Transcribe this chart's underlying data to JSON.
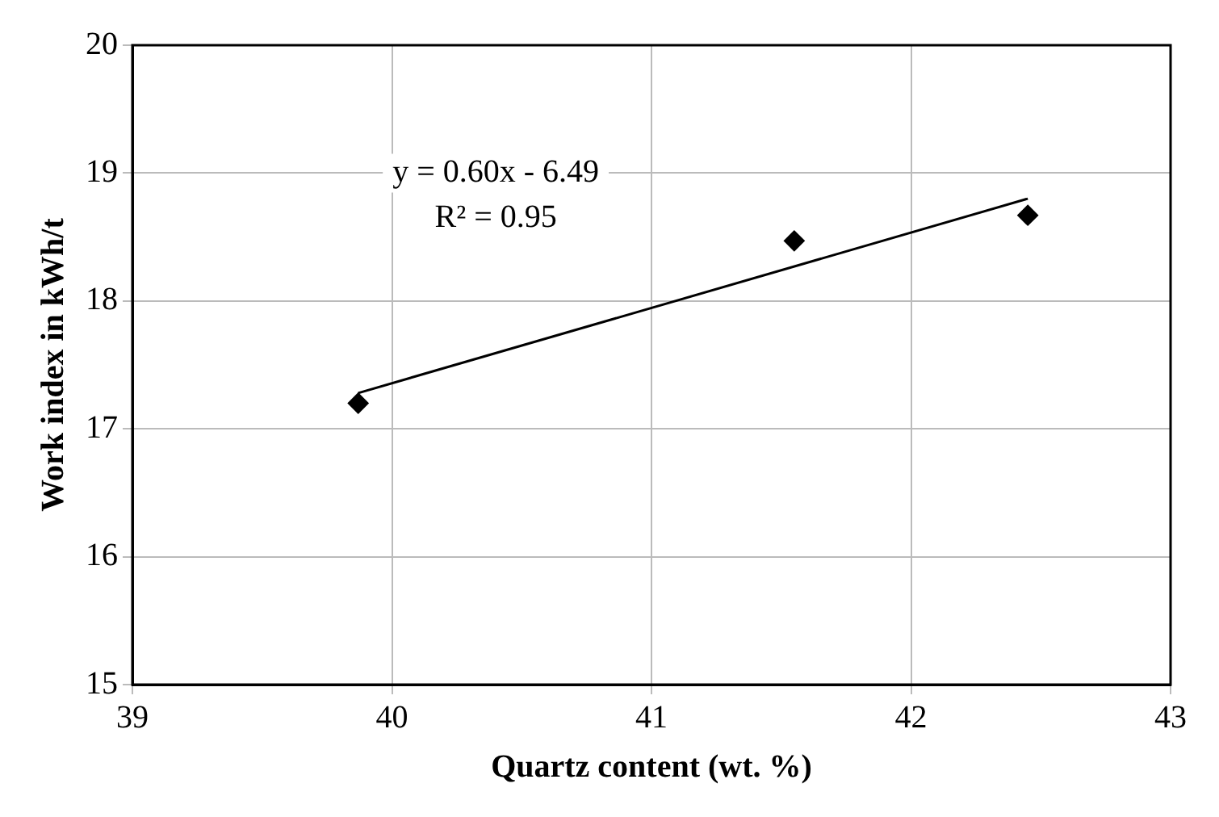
{
  "chart_data": {
    "type": "scatter",
    "xlabel": "Quartz content (wt. %)",
    "ylabel": "Work index in kWh/t",
    "series": [
      {
        "type": "scatter",
        "color": "#000000",
        "marker": "diamond",
        "x": [
          39.87,
          41.55,
          42.45
        ],
        "values": [
          17.2,
          18.47,
          18.67
        ]
      },
      {
        "type": "line",
        "color": "#000000",
        "marker": "none",
        "line_style": "solid",
        "x": [
          39.87,
          42.45
        ],
        "values": [
          17.28,
          18.8
        ]
      }
    ],
    "xlim": [
      39,
      43
    ],
    "xticks": [
      39,
      40,
      41,
      42,
      43
    ],
    "ylim": [
      15,
      20
    ],
    "yticks": [
      15,
      16,
      17,
      18,
      19,
      20
    ],
    "grid": true,
    "legend": false,
    "annotations": [
      "y = 0.60x - 6.49",
      "R² = 0.95"
    ]
  }
}
